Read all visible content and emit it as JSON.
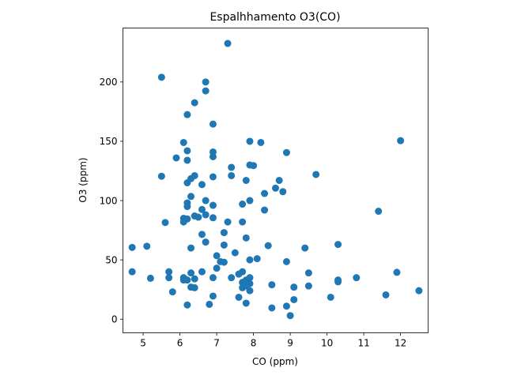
{
  "chart_data": {
    "type": "scatter",
    "title": "Espalhhamento O3(CO)",
    "xlabel": "CO (ppm)",
    "ylabel": "O3 (ppm)",
    "xlim": [
      4.45,
      12.75
    ],
    "ylim": [
      -11.5,
      245.5
    ],
    "xticks": [
      5,
      6,
      7,
      8,
      9,
      10,
      11,
      12
    ],
    "yticks": [
      0,
      50,
      100,
      150,
      200
    ],
    "grid": false,
    "marker_color": "#1f77b4",
    "points": [
      [
        4.7,
        60.5
      ],
      [
        4.7,
        40
      ],
      [
        5.1,
        61.5
      ],
      [
        5.2,
        34.5
      ],
      [
        5.5,
        204
      ],
      [
        5.5,
        120.5
      ],
      [
        5.6,
        81.5
      ],
      [
        5.7,
        40
      ],
      [
        5.7,
        35
      ],
      [
        5.8,
        23
      ],
      [
        5.9,
        136
      ],
      [
        6.1,
        149
      ],
      [
        6.1,
        85
      ],
      [
        6.1,
        82
      ],
      [
        6.1,
        35
      ],
      [
        6.1,
        33
      ],
      [
        6.2,
        172.5
      ],
      [
        6.2,
        142
      ],
      [
        6.2,
        134
      ],
      [
        6.2,
        115
      ],
      [
        6.2,
        98
      ],
      [
        6.2,
        95
      ],
      [
        6.2,
        84.5
      ],
      [
        6.2,
        33
      ],
      [
        6.2,
        12
      ],
      [
        6.3,
        118.5
      ],
      [
        6.3,
        103.5
      ],
      [
        6.3,
        60
      ],
      [
        6.3,
        39
      ],
      [
        6.3,
        27
      ],
      [
        6.4,
        182.5
      ],
      [
        6.4,
        121
      ],
      [
        6.4,
        87
      ],
      [
        6.4,
        34
      ],
      [
        6.4,
        26.5
      ],
      [
        6.5,
        86
      ],
      [
        6.6,
        113.5
      ],
      [
        6.6,
        92.5
      ],
      [
        6.6,
        71.5
      ],
      [
        6.6,
        40
      ],
      [
        6.7,
        200
      ],
      [
        6.7,
        192.5
      ],
      [
        6.7,
        100
      ],
      [
        6.7,
        88
      ],
      [
        6.7,
        65
      ],
      [
        6.8,
        12.5
      ],
      [
        6.9,
        164.5
      ],
      [
        6.9,
        141
      ],
      [
        6.9,
        137
      ],
      [
        6.9,
        120
      ],
      [
        6.9,
        96
      ],
      [
        6.9,
        85.5
      ],
      [
        6.9,
        35
      ],
      [
        6.9,
        19.5
      ],
      [
        7.0,
        53.5
      ],
      [
        7.0,
        43
      ],
      [
        7.1,
        48.5
      ],
      [
        7.2,
        73
      ],
      [
        7.2,
        62.5
      ],
      [
        7.2,
        48
      ],
      [
        7.3,
        232.5
      ],
      [
        7.3,
        82
      ],
      [
        7.4,
        128
      ],
      [
        7.4,
        121
      ],
      [
        7.4,
        35
      ],
      [
        7.5,
        56
      ],
      [
        7.6,
        38
      ],
      [
        7.6,
        18.5
      ],
      [
        7.7,
        97
      ],
      [
        7.7,
        82
      ],
      [
        7.7,
        40
      ],
      [
        7.7,
        31
      ],
      [
        7.7,
        26.5
      ],
      [
        7.8,
        117
      ],
      [
        7.8,
        68.5
      ],
      [
        7.8,
        33
      ],
      [
        7.8,
        28
      ],
      [
        7.8,
        13.5
      ],
      [
        7.9,
        150
      ],
      [
        7.9,
        130
      ],
      [
        7.9,
        100
      ],
      [
        7.9,
        50
      ],
      [
        7.9,
        35
      ],
      [
        7.9,
        30
      ],
      [
        7.9,
        24
      ],
      [
        8.0,
        129.5
      ],
      [
        8.1,
        51
      ],
      [
        8.2,
        149
      ],
      [
        8.3,
        106
      ],
      [
        8.3,
        92
      ],
      [
        8.4,
        62
      ],
      [
        8.5,
        29
      ],
      [
        8.5,
        9.5
      ],
      [
        8.6,
        110.5
      ],
      [
        8.7,
        117
      ],
      [
        8.8,
        107.5
      ],
      [
        8.9,
        140.5
      ],
      [
        8.9,
        48.5
      ],
      [
        8.9,
        11
      ],
      [
        9.0,
        3
      ],
      [
        9.1,
        27
      ],
      [
        9.1,
        16.5
      ],
      [
        9.4,
        60
      ],
      [
        9.5,
        39
      ],
      [
        9.5,
        28
      ],
      [
        9.7,
        122
      ],
      [
        10.1,
        18.5
      ],
      [
        10.3,
        63
      ],
      [
        10.3,
        33
      ],
      [
        10.3,
        31.5
      ],
      [
        10.8,
        35
      ],
      [
        11.4,
        91
      ],
      [
        11.6,
        20.5
      ],
      [
        11.9,
        39.5
      ],
      [
        12.0,
        150.5
      ],
      [
        12.5,
        24
      ]
    ]
  }
}
